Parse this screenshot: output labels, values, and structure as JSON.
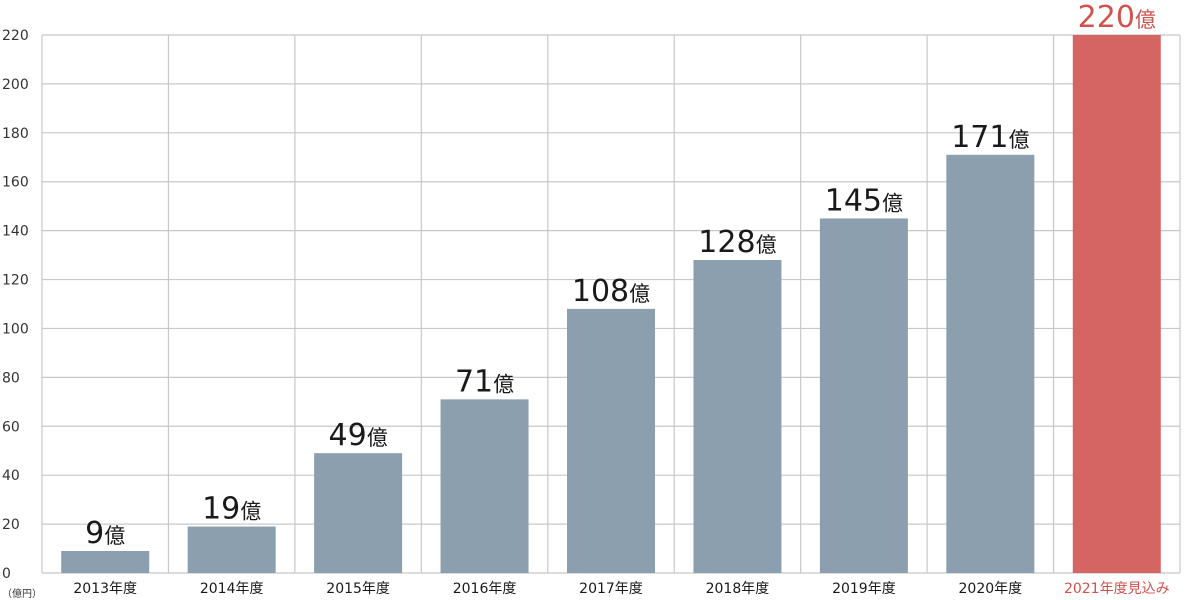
{
  "chart_data": {
    "type": "bar",
    "title": "",
    "xlabel": "",
    "ylabel": "",
    "unit_label": "（億円）",
    "ylim": [
      0,
      220
    ],
    "yticks": [
      0,
      20,
      40,
      60,
      80,
      100,
      120,
      140,
      160,
      180,
      200,
      220
    ],
    "grid": true,
    "categories": [
      "2013年度",
      "2014年度",
      "2015年度",
      "2016年度",
      "2017年度",
      "2018年度",
      "2019年度",
      "2020年度",
      "2021年度見込み"
    ],
    "values": [
      9,
      19,
      49,
      71,
      108,
      128,
      145,
      171,
      220
    ],
    "data_labels": [
      "9",
      "19",
      "49",
      "71",
      "108",
      "128",
      "145",
      "171",
      "220"
    ],
    "value_suffix": "億",
    "highlight_index": 8
  },
  "colors": {
    "bar": "#8c9fae",
    "highlight_bar": "#d56563",
    "highlight_text": "#d0534f",
    "text": "#1a1a1a",
    "grid": "#c8c8c8"
  }
}
